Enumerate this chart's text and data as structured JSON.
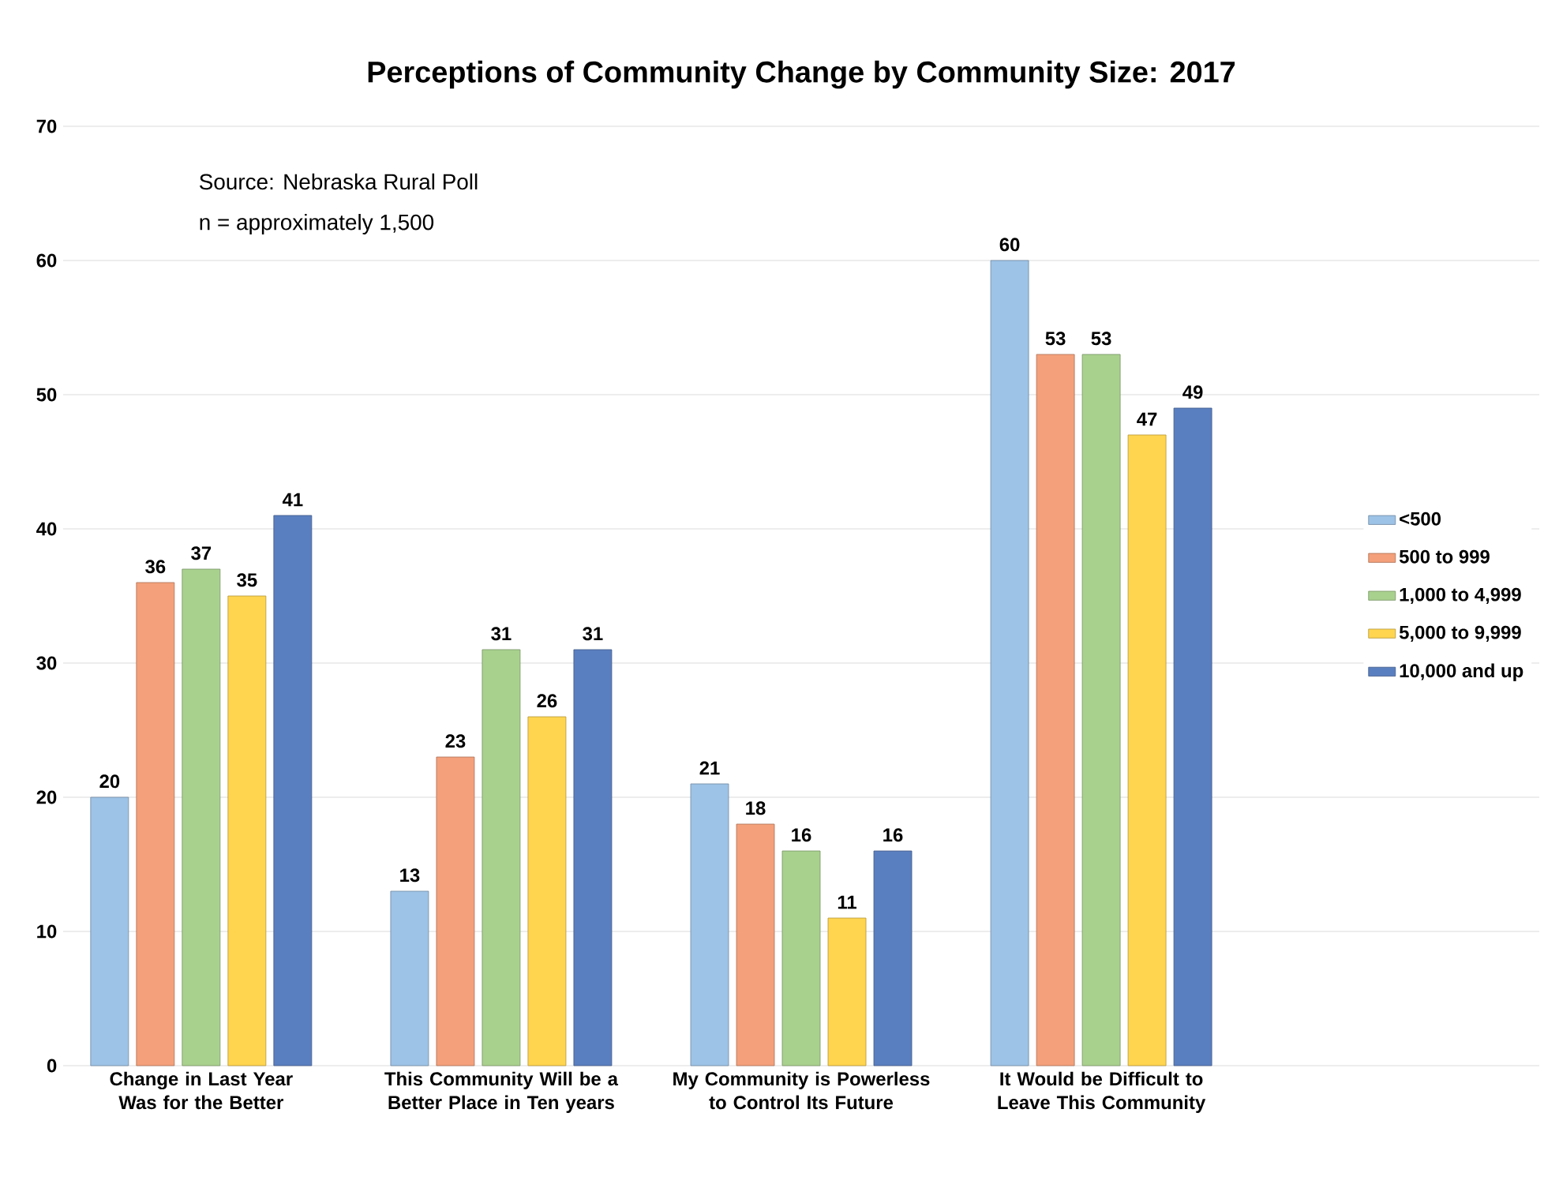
{
  "chart_data": {
    "type": "bar",
    "title": "Perceptions of Community Change by Community Size: 2017",
    "categories": [
      "Change in Last Year Was for the Better",
      "This Community Will be a Better Place in Ten years",
      "My Community is Powerless to Control Its Future",
      "It Would be Difficult to Leave This Community"
    ],
    "series": [
      {
        "name": "<500",
        "color": "#9dc3e6",
        "values": [
          20,
          13,
          21,
          60
        ]
      },
      {
        "name": "500 to 999",
        "color": "#f4a07a",
        "values": [
          36,
          23,
          18,
          53
        ]
      },
      {
        "name": "1,000 to 4,999",
        "color": "#a9d18e",
        "values": [
          37,
          31,
          16,
          53
        ]
      },
      {
        "name": "5,000 to 9,999",
        "color": "#ffd54f",
        "values": [
          35,
          26,
          11,
          47
        ]
      },
      {
        "name": "10,000 and up",
        "color": "#5a7fc0",
        "values": [
          41,
          31,
          16,
          49
        ]
      }
    ],
    "ylim": [
      0,
      70
    ],
    "yticks": [
      0,
      10,
      20,
      30,
      40,
      50,
      60,
      70
    ],
    "grid": "y",
    "legend": "right",
    "data_labels": true,
    "annotations": [
      "Source: Nebraska Rural Poll",
      "n = approximately 1,500"
    ]
  }
}
